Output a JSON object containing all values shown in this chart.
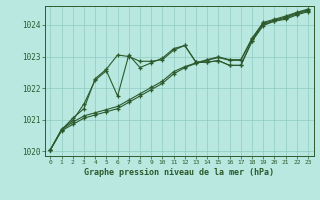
{
  "title": "Graphe pression niveau de la mer (hPa)",
  "background_color": "#b8e8e0",
  "grid_color": "#90ccc4",
  "line_color": "#2d5a2d",
  "x": [
    0,
    1,
    2,
    3,
    4,
    5,
    6,
    7,
    8,
    9,
    10,
    11,
    12,
    13,
    14,
    15,
    16,
    17,
    18,
    19,
    20,
    21,
    22,
    23
  ],
  "series1": [
    1020.05,
    1020.65,
    1020.85,
    1021.05,
    1021.15,
    1021.25,
    1021.35,
    1021.55,
    1021.75,
    1021.95,
    1022.15,
    1022.45,
    1022.65,
    1022.78,
    1022.88,
    1022.97,
    1022.88,
    1022.88,
    1023.55,
    1024.05,
    1024.15,
    1024.25,
    1024.38,
    1024.48
  ],
  "series2": [
    1020.05,
    1020.68,
    1020.92,
    1021.12,
    1021.22,
    1021.32,
    1021.42,
    1021.62,
    1021.82,
    1022.02,
    1022.22,
    1022.52,
    1022.68,
    1022.8,
    1022.9,
    1022.99,
    1022.9,
    1022.9,
    1023.58,
    1024.08,
    1024.18,
    1024.28,
    1024.4,
    1024.5
  ],
  "series3": [
    1020.05,
    1020.68,
    1021.05,
    1021.35,
    1022.3,
    1022.6,
    1023.05,
    1023.0,
    1022.85,
    1022.85,
    1022.9,
    1023.2,
    1023.35,
    1022.82,
    1022.82,
    1022.87,
    1022.72,
    1022.72,
    1023.48,
    1023.98,
    1024.12,
    1024.18,
    1024.32,
    1024.42
  ],
  "series4": [
    1020.05,
    1020.7,
    1020.98,
    1021.5,
    1022.25,
    1022.55,
    1021.75,
    1023.05,
    1022.65,
    1022.8,
    1022.95,
    1023.25,
    1023.35,
    1022.82,
    1022.82,
    1022.87,
    1022.72,
    1022.72,
    1023.5,
    1024.02,
    1024.12,
    1024.22,
    1024.35,
    1024.45
  ],
  "ylim": [
    1019.85,
    1024.6
  ],
  "xlim": [
    -0.5,
    23.5
  ],
  "yticks": [
    1020,
    1021,
    1022,
    1023,
    1024
  ],
  "xticks": [
    0,
    1,
    2,
    3,
    4,
    5,
    6,
    7,
    8,
    9,
    10,
    11,
    12,
    13,
    14,
    15,
    16,
    17,
    18,
    19,
    20,
    21,
    22,
    23
  ]
}
